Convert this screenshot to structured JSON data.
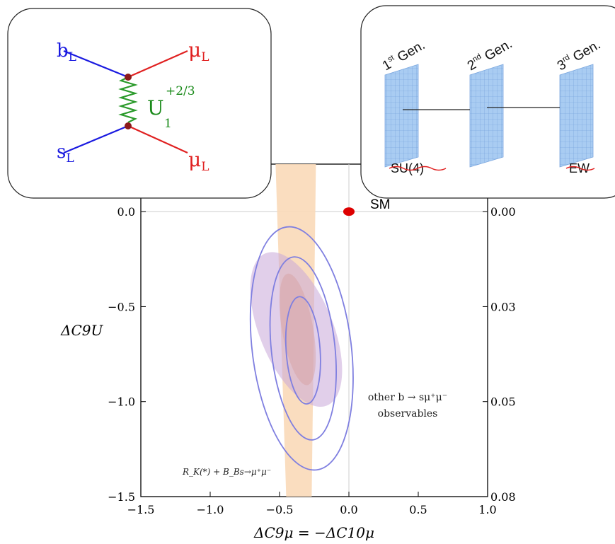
{
  "chart_data": {
    "type": "scatter",
    "xlabel": "ΔC9μ = −ΔC10μ",
    "ylabel": "ΔC9U",
    "xlim": [
      -1.5,
      1.0
    ],
    "ylim": [
      -1.5,
      0.25
    ],
    "x_ticks": [
      "−1.5",
      "−1.0",
      "−0.5",
      "0.0",
      "0.5",
      "1.0"
    ],
    "x_tick_values": [
      -1.5,
      -1.0,
      -0.5,
      0.0,
      0.5,
      1.0
    ],
    "y_ticks": [
      "0.0",
      "−0.5",
      "−1.0",
      "−1.5"
    ],
    "y_tick_values": [
      0.0,
      -0.5,
      -1.0,
      -1.5
    ],
    "right_ticks": [
      "0.00",
      "0.03",
      "0.05",
      "0.08"
    ],
    "sm_point": {
      "x": 0.0,
      "y": 0.0,
      "label": "SM"
    },
    "band_center_x": -0.35,
    "colors": {
      "band": "#f9d9b8",
      "contour": "#7f7fe0",
      "ellipse": "#c8a8d8",
      "sm": "#dd0000",
      "axis": "#000000"
    },
    "annotations": {
      "other_line1": "other b → sμ⁺μ⁻",
      "other_line2": "observables",
      "rk": "R_K(*) + B_Bs→μ⁺μ⁻"
    }
  },
  "feynman": {
    "bL": "b",
    "bL_sub": "L",
    "sL": "s",
    "sL_sub": "L",
    "muL_top": "μ",
    "muL_top_sub": "L",
    "muL_bot": "μ",
    "muL_bot_sub": "L",
    "U": "U",
    "U_sub": "1",
    "U_sup": "+2/3"
  },
  "generations": {
    "gen1": "1",
    "gen1_sup": "st",
    "gen1_rest": " Gen.",
    "gen2": "2",
    "gen2_sup": "nd",
    "gen2_rest": " Gen.",
    "gen3": "3",
    "gen3_sup": "rd",
    "gen3_rest": " Gen.",
    "su4": "SU(4)",
    "ew": "EW"
  }
}
